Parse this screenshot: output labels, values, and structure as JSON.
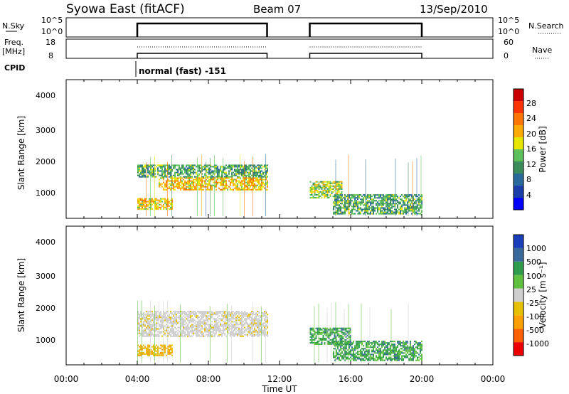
{
  "header": {
    "title": "Syowa East (fitACF)",
    "beam": "Beam 07",
    "date": "13/Sep/2010"
  },
  "top_panels": {
    "nsky": {
      "label": "N.Sky",
      "left_ticks": [
        "10^5",
        "10^0"
      ],
      "right_ticks": [
        "10^5",
        "10^0"
      ],
      "right_label": "N.Search"
    },
    "freq": {
      "label_line1": "Freq.",
      "label_line2": "[MHz]",
      "left_ticks": [
        "18",
        "8"
      ],
      "right_ticks": [
        "60",
        "0"
      ],
      "right_label": "Nave"
    },
    "cpid": {
      "label": "CPID",
      "text": "normal (fast) -151"
    }
  },
  "panel_power": {
    "ylabel": "Slant Range [km]",
    "yticks": [
      "4000",
      "3000",
      "2000",
      "1000"
    ],
    "colorbar_label": "Power [dB]",
    "colorbar_ticks": [
      "28",
      "24",
      "20",
      "16",
      "12",
      "8",
      "4"
    ],
    "colors": [
      "#0000ff",
      "#1a3fa8",
      "#2a6a9c",
      "#3a8c5a",
      "#5ec05a",
      "#e6e600",
      "#ffaa00",
      "#ff7700",
      "#ff3300",
      "#cc0000"
    ]
  },
  "panel_velocity": {
    "ylabel": "Slant Range [km]",
    "yticks": [
      "4000",
      "3000",
      "2000",
      "1000"
    ],
    "colorbar_label": "Velocity [m s⁻¹]",
    "colorbar_ticks": [
      "1000",
      "500",
      "100",
      "25",
      "-25",
      "-100",
      "-500",
      "-1000"
    ],
    "colors": [
      "#1a3fb8",
      "#3a6a9c",
      "#2e9c4a",
      "#60c040",
      "#cfcfcf",
      "#e6c000",
      "#ffa000",
      "#ff6000",
      "#ee0000"
    ]
  },
  "xaxis": {
    "ticks": [
      "00:00",
      "04:00",
      "08:00",
      "12:00",
      "16:00",
      "20:00",
      "00:00"
    ],
    "label": "Time UT"
  },
  "chart_data": {
    "type": "heatmap",
    "title": "Syowa East (fitACF)",
    "xlabel": "Time UT",
    "ylabel": "Slant Range [km]",
    "xlim_hours": [
      0,
      24
    ],
    "ylim_km": [
      180,
      4500
    ],
    "data_intervals_hours": [
      [
        4.0,
        11.3
      ],
      [
        13.7,
        20.0
      ]
    ],
    "power_bands": [
      {
        "t0": 4.0,
        "t1": 11.3,
        "r0": 1450,
        "r1": 1850,
        "value_db": 12
      },
      {
        "t0": 5.2,
        "t1": 11.3,
        "r0": 1050,
        "r1": 1450,
        "value_db": 20
      },
      {
        "t0": 4.0,
        "t1": 6.0,
        "r0": 450,
        "r1": 800,
        "value_db": 20
      },
      {
        "t0": 13.7,
        "t1": 15.5,
        "r0": 800,
        "r1": 1300,
        "value_db": 16
      },
      {
        "t0": 15.0,
        "t1": 20.0,
        "r0": 300,
        "r1": 900,
        "value_db": 12
      }
    ],
    "velocity_bands": [
      {
        "t0": 4.0,
        "t1": 11.3,
        "r0": 1050,
        "r1": 1850,
        "value_ms": 0
      },
      {
        "t0": 4.0,
        "t1": 6.0,
        "r0": 450,
        "r1": 800,
        "value_ms": -100
      },
      {
        "t0": 13.7,
        "t1": 16.0,
        "r0": 800,
        "r1": 1300,
        "value_ms": 100
      },
      {
        "t0": 15.0,
        "t1": 20.0,
        "r0": 300,
        "r1": 900,
        "value_ms": 100
      }
    ]
  }
}
